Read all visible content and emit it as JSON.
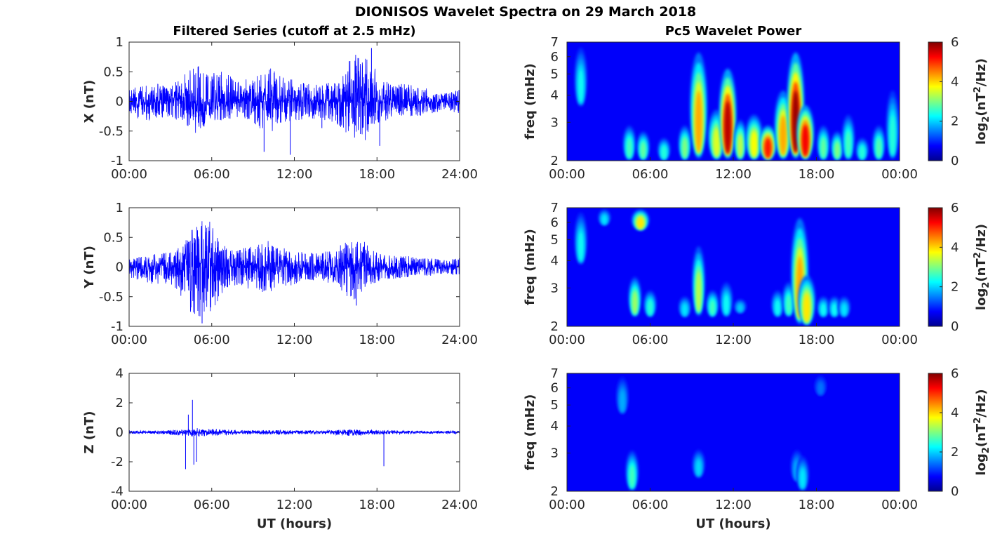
{
  "figure": {
    "title": "DIONISOS Wavelet Spectra on 29 March 2018"
  },
  "chart_data": [
    {
      "type": "line",
      "panel": "left-top",
      "title": "Filtered Series (cutoff at 2.5 mHz)",
      "xlabel": "",
      "ylabel": "X (nT)",
      "xlim": [
        0,
        24
      ],
      "ylim": [
        -1,
        1
      ],
      "x_ticks": [
        "00:00",
        "06:00",
        "12:00",
        "18:00",
        "24:00"
      ],
      "y_ticks": [
        "-1",
        "-0.5",
        "0",
        "0.5",
        "1"
      ],
      "y_tick_values": [
        -1,
        -0.5,
        0,
        0.5,
        1
      ],
      "grid": false,
      "series_color": "#0000ff",
      "envelope": {
        "x_hours": [
          0,
          1,
          2,
          3,
          4,
          5,
          6,
          7,
          8,
          9,
          10,
          11,
          12,
          13,
          14,
          15,
          16,
          17,
          18,
          19,
          20,
          21,
          22,
          23,
          24
        ],
        "upper": [
          0.2,
          0.3,
          0.3,
          0.25,
          0.45,
          0.65,
          0.5,
          0.5,
          0.35,
          0.4,
          0.6,
          0.45,
          0.35,
          0.3,
          0.3,
          0.35,
          0.7,
          0.9,
          0.5,
          0.3,
          0.3,
          0.25,
          0.2,
          0.15,
          0.2
        ],
        "lower": [
          -0.2,
          -0.35,
          -0.3,
          -0.25,
          -0.45,
          -0.55,
          -0.4,
          -0.3,
          -0.3,
          -0.35,
          -0.6,
          -0.4,
          -0.35,
          -0.3,
          -0.3,
          -0.4,
          -0.65,
          -0.75,
          -0.4,
          -0.3,
          -0.25,
          -0.25,
          -0.2,
          -0.15,
          -0.2
        ]
      },
      "spikes": [
        {
          "x_hours": 9.8,
          "value": -0.85
        },
        {
          "x_hours": 11.7,
          "value": -0.9
        },
        {
          "x_hours": 14.0,
          "value": -0.45
        },
        {
          "x_hours": 16.8,
          "value": -0.55
        },
        {
          "x_hours": 17.6,
          "value": 0.9
        },
        {
          "x_hours": 18.2,
          "value": -0.75
        }
      ]
    },
    {
      "type": "line",
      "panel": "left-middle",
      "title": "",
      "xlabel": "",
      "ylabel": "Y (nT)",
      "xlim": [
        0,
        24
      ],
      "ylim": [
        -1,
        1
      ],
      "x_ticks": [
        "00:00",
        "06:00",
        "12:00",
        "18:00",
        "24:00"
      ],
      "y_ticks": [
        "-1",
        "-0.5",
        "0",
        "0.5",
        "1"
      ],
      "y_tick_values": [
        -1,
        -0.5,
        0,
        0.5,
        1
      ],
      "grid": false,
      "series_color": "#0000ff",
      "envelope": {
        "x_hours": [
          0,
          1,
          2,
          3,
          4,
          5,
          6,
          7,
          8,
          9,
          10,
          11,
          12,
          13,
          14,
          15,
          16,
          17,
          18,
          19,
          20,
          21,
          22,
          23,
          24
        ],
        "upper": [
          0.15,
          0.2,
          0.25,
          0.25,
          0.4,
          0.85,
          0.75,
          0.35,
          0.3,
          0.4,
          0.45,
          0.35,
          0.3,
          0.25,
          0.25,
          0.3,
          0.5,
          0.45,
          0.25,
          0.2,
          0.2,
          0.15,
          0.15,
          0.12,
          0.15
        ],
        "lower": [
          -0.2,
          -0.25,
          -0.3,
          -0.3,
          -0.6,
          -0.95,
          -0.75,
          -0.35,
          -0.3,
          -0.4,
          -0.45,
          -0.35,
          -0.3,
          -0.25,
          -0.25,
          -0.3,
          -0.6,
          -0.45,
          -0.25,
          -0.2,
          -0.2,
          -0.15,
          -0.15,
          -0.12,
          -0.15
        ]
      },
      "spikes": [
        {
          "x_hours": 5.3,
          "value": -0.95
        },
        {
          "x_hours": 16.5,
          "value": -0.65
        }
      ]
    },
    {
      "type": "line",
      "panel": "left-bottom",
      "title": "",
      "xlabel": "UT (hours)",
      "ylabel": "Z (nT)",
      "xlim": [
        0,
        24
      ],
      "ylim": [
        -4,
        4
      ],
      "x_ticks": [
        "00:00",
        "06:00",
        "12:00",
        "18:00",
        "24:00"
      ],
      "y_ticks": [
        "-4",
        "-2",
        "0",
        "2",
        "4"
      ],
      "y_tick_values": [
        -4,
        -2,
        0,
        2,
        4
      ],
      "grid": false,
      "series_color": "#0000ff",
      "envelope": {
        "x_hours": [
          0,
          2,
          4,
          5,
          6,
          8,
          10,
          12,
          14,
          16,
          18,
          20,
          22,
          24
        ],
        "upper": [
          0.12,
          0.12,
          0.2,
          0.3,
          0.25,
          0.15,
          0.15,
          0.15,
          0.12,
          0.2,
          0.15,
          0.12,
          0.1,
          0.1
        ],
        "lower": [
          -0.12,
          -0.12,
          -0.25,
          -0.3,
          -0.25,
          -0.15,
          -0.15,
          -0.15,
          -0.12,
          -0.25,
          -0.15,
          -0.12,
          -0.1,
          -0.1
        ]
      },
      "spikes": [
        {
          "x_hours": 4.1,
          "value": -2.5
        },
        {
          "x_hours": 4.3,
          "value": 1.2
        },
        {
          "x_hours": 4.6,
          "value": 2.2
        },
        {
          "x_hours": 4.7,
          "value": -2.2
        },
        {
          "x_hours": 4.9,
          "value": -2.0
        },
        {
          "x_hours": 18.5,
          "value": -2.3
        }
      ]
    },
    {
      "type": "heatmap",
      "panel": "right-top",
      "title": "Pc5 Wavelet Power",
      "xlabel": "",
      "ylabel": "freq (mHz)",
      "xlim": [
        0,
        24
      ],
      "ylim": [
        2,
        7
      ],
      "yscale": "log",
      "x_ticks": [
        "00:00",
        "06:00",
        "12:00",
        "18:00",
        "00:00"
      ],
      "y_ticks": [
        "2",
        "3",
        "4",
        "5",
        "6",
        "7"
      ],
      "y_tick_values": [
        2,
        3,
        4,
        5,
        6,
        7
      ],
      "colorbar": {
        "label": "log2(nT^2/Hz)",
        "range": [
          0,
          6
        ],
        "ticks": [
          "0",
          "2",
          "4",
          "6"
        ],
        "colormap": "jet"
      },
      "blobs": [
        {
          "t": 1.0,
          "f_low": 3.5,
          "f_high": 7.0,
          "power": 1.8
        },
        {
          "t": 4.5,
          "f_low": 2.0,
          "f_high": 3.0,
          "power": 2.2
        },
        {
          "t": 5.5,
          "f_low": 2.0,
          "f_high": 2.8,
          "power": 2.4
        },
        {
          "t": 7.0,
          "f_low": 2.0,
          "f_high": 2.6,
          "power": 2.0
        },
        {
          "t": 8.5,
          "f_low": 2.0,
          "f_high": 3.0,
          "power": 2.6
        },
        {
          "t": 9.5,
          "f_low": 2.0,
          "f_high": 7.0,
          "power": 4.0
        },
        {
          "t": 10.8,
          "f_low": 2.0,
          "f_high": 3.6,
          "power": 3.2
        },
        {
          "t": 11.6,
          "f_low": 2.0,
          "f_high": 5.8,
          "power": 5.6
        },
        {
          "t": 12.5,
          "f_low": 2.0,
          "f_high": 3.2,
          "power": 3.0
        },
        {
          "t": 13.5,
          "f_low": 2.0,
          "f_high": 3.4,
          "power": 3.4
        },
        {
          "t": 14.5,
          "f_low": 2.0,
          "f_high": 3.0,
          "power": 5.0
        },
        {
          "t": 15.6,
          "f_low": 2.0,
          "f_high": 4.5,
          "power": 4.0
        },
        {
          "t": 16.5,
          "f_low": 2.0,
          "f_high": 7.0,
          "power": 5.8
        },
        {
          "t": 17.2,
          "f_low": 2.0,
          "f_high": 3.8,
          "power": 5.2
        },
        {
          "t": 18.5,
          "f_low": 2.0,
          "f_high": 3.0,
          "power": 2.4
        },
        {
          "t": 19.5,
          "f_low": 2.0,
          "f_high": 2.8,
          "power": 2.6
        },
        {
          "t": 20.3,
          "f_low": 2.0,
          "f_high": 3.4,
          "power": 2.2
        },
        {
          "t": 21.3,
          "f_low": 2.0,
          "f_high": 2.6,
          "power": 2.0
        },
        {
          "t": 22.5,
          "f_low": 2.0,
          "f_high": 3.0,
          "power": 2.3
        },
        {
          "t": 23.5,
          "f_low": 2.0,
          "f_high": 4.5,
          "power": 2.0
        }
      ]
    },
    {
      "type": "heatmap",
      "panel": "right-middle",
      "title": "",
      "xlabel": "",
      "ylabel": "freq (mHz)",
      "xlim": [
        0,
        24
      ],
      "ylim": [
        2,
        7
      ],
      "yscale": "log",
      "x_ticks": [
        "00:00",
        "06:00",
        "12:00",
        "18:00",
        "00:00"
      ],
      "y_ticks": [
        "2",
        "3",
        "4",
        "5",
        "6",
        "7"
      ],
      "y_tick_values": [
        2,
        3,
        4,
        5,
        6,
        7
      ],
      "colorbar": {
        "label": "log2(nT^2/Hz)",
        "range": [
          0,
          6
        ],
        "ticks": [
          "0",
          "2",
          "4",
          "6"
        ],
        "colormap": "jet"
      },
      "blobs": [
        {
          "t": 1.0,
          "f_low": 3.8,
          "f_high": 7.0,
          "power": 1.8
        },
        {
          "t": 2.7,
          "f_low": 5.8,
          "f_high": 7.0,
          "power": 1.6
        },
        {
          "t": 4.9,
          "f_low": 2.2,
          "f_high": 3.5,
          "power": 2.8
        },
        {
          "t": 5.3,
          "f_low": 5.5,
          "f_high": 7.0,
          "power": 3.6
        },
        {
          "t": 6.0,
          "f_low": 2.2,
          "f_high": 3.0,
          "power": 2.0
        },
        {
          "t": 8.5,
          "f_low": 2.2,
          "f_high": 2.8,
          "power": 1.6
        },
        {
          "t": 9.5,
          "f_low": 2.2,
          "f_high": 5.0,
          "power": 3.0
        },
        {
          "t": 10.5,
          "f_low": 2.2,
          "f_high": 3.0,
          "power": 2.2
        },
        {
          "t": 11.5,
          "f_low": 2.2,
          "f_high": 3.3,
          "power": 1.8
        },
        {
          "t": 12.5,
          "f_low": 2.3,
          "f_high": 2.7,
          "power": 1.4
        },
        {
          "t": 15.2,
          "f_low": 2.2,
          "f_high": 3.0,
          "power": 1.8
        },
        {
          "t": 16.0,
          "f_low": 2.2,
          "f_high": 3.3,
          "power": 2.2
        },
        {
          "t": 16.8,
          "f_low": 2.0,
          "f_high": 7.0,
          "power": 4.0
        },
        {
          "t": 17.3,
          "f_low": 2.0,
          "f_high": 3.6,
          "power": 3.6
        },
        {
          "t": 18.5,
          "f_low": 2.2,
          "f_high": 2.8,
          "power": 1.8
        },
        {
          "t": 19.3,
          "f_low": 2.2,
          "f_high": 2.8,
          "power": 1.8
        },
        {
          "t": 20.0,
          "f_low": 2.2,
          "f_high": 2.8,
          "power": 1.6
        }
      ]
    },
    {
      "type": "heatmap",
      "panel": "right-bottom",
      "title": "",
      "xlabel": "UT (hours)",
      "ylabel": "freq (mHz)",
      "xlim": [
        0,
        24
      ],
      "ylim": [
        2,
        7
      ],
      "yscale": "log",
      "x_ticks": [
        "00:00",
        "06:00",
        "12:00",
        "18:00",
        "00:00"
      ],
      "y_ticks": [
        "2",
        "3",
        "4",
        "5",
        "6",
        "7"
      ],
      "y_tick_values": [
        2,
        3,
        4,
        5,
        6,
        7
      ],
      "colorbar": {
        "label": "log2(nT^2/Hz)",
        "range": [
          0,
          6
        ],
        "ticks": [
          "0",
          "2",
          "4",
          "6"
        ],
        "colormap": "jet"
      },
      "blobs": [
        {
          "t": 4.0,
          "f_low": 4.5,
          "f_high": 7.0,
          "power": 1.2
        },
        {
          "t": 4.7,
          "f_low": 2.0,
          "f_high": 3.2,
          "power": 2.2
        },
        {
          "t": 9.5,
          "f_low": 2.3,
          "f_high": 3.2,
          "power": 1.5
        },
        {
          "t": 16.6,
          "f_low": 2.2,
          "f_high": 3.2,
          "power": 1.3
        },
        {
          "t": 17.0,
          "f_low": 2.0,
          "f_high": 3.0,
          "power": 1.6
        },
        {
          "t": 18.3,
          "f_low": 5.5,
          "f_high": 7.0,
          "power": 0.8
        }
      ]
    }
  ]
}
